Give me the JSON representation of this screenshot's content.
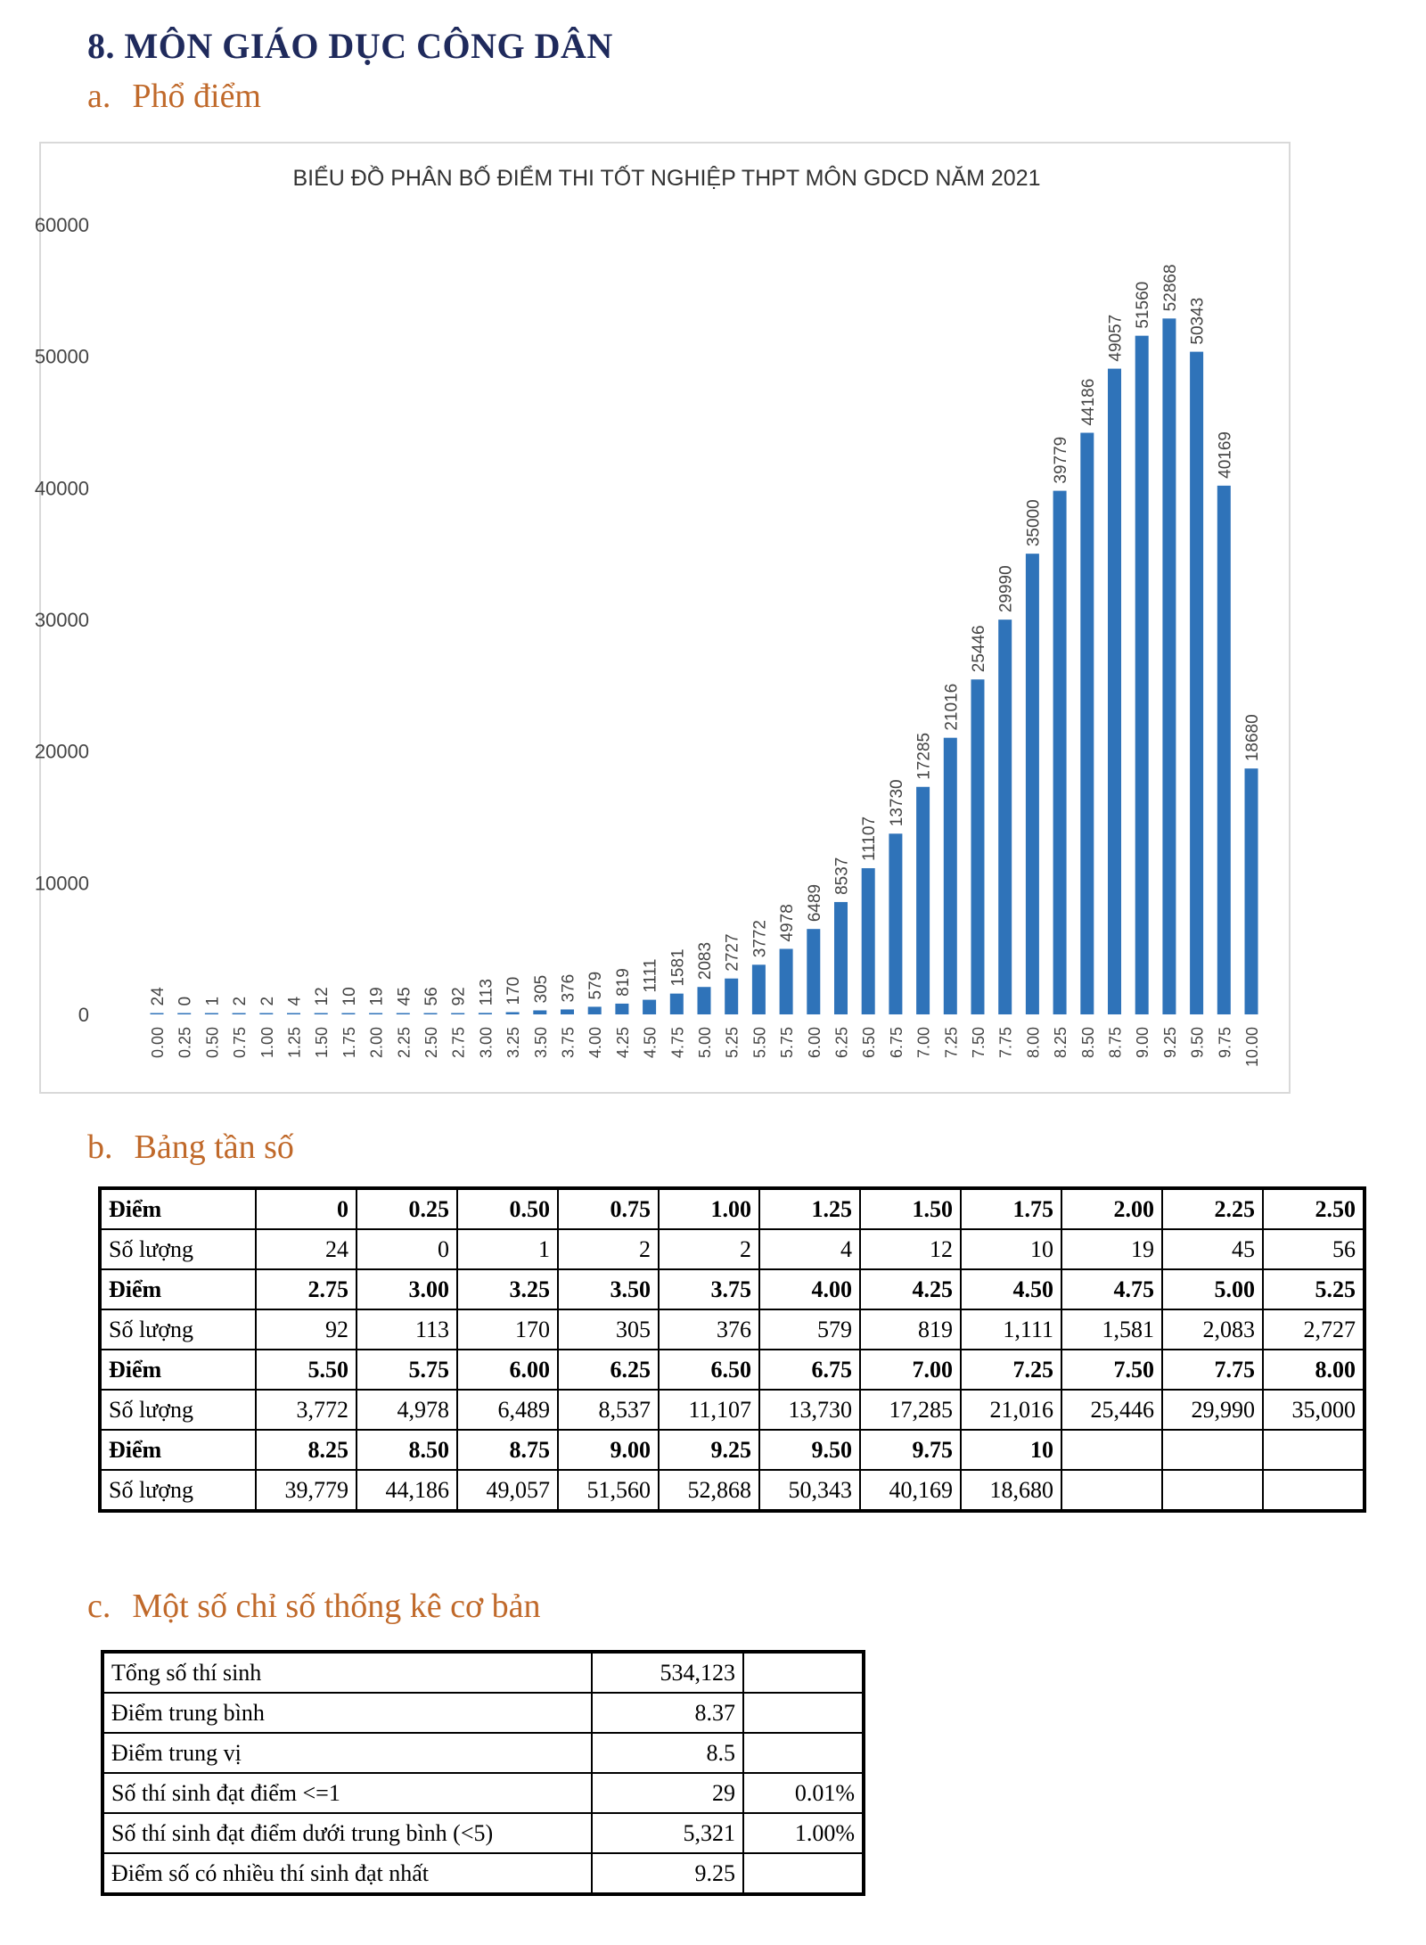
{
  "heading": "8.  MÔN GIÁO DỤC CÔNG DÂN",
  "sections": {
    "a": {
      "label": "a.",
      "title": "Phổ điểm"
    },
    "b": {
      "label": "b.",
      "title": "Bảng tần số"
    },
    "c": {
      "label": "c.",
      "title": "Một số chỉ số thống kê cơ bản"
    }
  },
  "chart_data": {
    "type": "bar",
    "title": "BIỂU ĐỒ PHÂN BỐ ĐIỂM THI TỐT NGHIỆP THPT MÔN GDCD NĂM 2021",
    "categories": [
      "0.00",
      "0.25",
      "0.50",
      "0.75",
      "1.00",
      "1.25",
      "1.50",
      "1.75",
      "2.00",
      "2.25",
      "2.50",
      "2.75",
      "3.00",
      "3.25",
      "3.50",
      "3.75",
      "4.00",
      "4.25",
      "4.50",
      "4.75",
      "5.00",
      "5.25",
      "5.50",
      "5.75",
      "6.00",
      "6.25",
      "6.50",
      "6.75",
      "7.00",
      "7.25",
      "7.50",
      "7.75",
      "8.00",
      "8.25",
      "8.50",
      "8.75",
      "9.00",
      "9.25",
      "9.50",
      "9.75",
      "10.00"
    ],
    "values": [
      24,
      0,
      1,
      2,
      2,
      4,
      12,
      10,
      19,
      45,
      56,
      92,
      113,
      170,
      305,
      376,
      579,
      819,
      1111,
      1581,
      2083,
      2727,
      3772,
      4978,
      6489,
      8537,
      11107,
      13730,
      17285,
      21016,
      25446,
      29990,
      35000,
      39779,
      44186,
      49057,
      51560,
      52868,
      50343,
      40169,
      18680
    ],
    "ylim": [
      0,
      60000
    ],
    "yticks": [
      "0",
      "10000",
      "20000",
      "30000",
      "40000",
      "50000",
      "60000"
    ],
    "grid": false,
    "bar_color": "#2f73b9",
    "data_labels": true
  },
  "freq_table": {
    "rows": [
      {
        "label": "Điểm",
        "cells": [
          "0",
          "0.25",
          "0.50",
          "0.75",
          "1.00",
          "1.25",
          "1.50",
          "1.75",
          "2.00",
          "2.25",
          "2.50"
        ]
      },
      {
        "label": "Số lượng",
        "cells": [
          "24",
          "0",
          "1",
          "2",
          "2",
          "4",
          "12",
          "10",
          "19",
          "45",
          "56"
        ]
      },
      {
        "label": "Điểm",
        "cells": [
          "2.75",
          "3.00",
          "3.25",
          "3.50",
          "3.75",
          "4.00",
          "4.25",
          "4.50",
          "4.75",
          "5.00",
          "5.25"
        ]
      },
      {
        "label": "Số lượng",
        "cells": [
          "92",
          "113",
          "170",
          "305",
          "376",
          "579",
          "819",
          "1,111",
          "1,581",
          "2,083",
          "2,727"
        ]
      },
      {
        "label": "Điểm",
        "cells": [
          "5.50",
          "5.75",
          "6.00",
          "6.25",
          "6.50",
          "6.75",
          "7.00",
          "7.25",
          "7.50",
          "7.75",
          "8.00"
        ]
      },
      {
        "label": "Số lượng",
        "cells": [
          "3,772",
          "4,978",
          "6,489",
          "8,537",
          "11,107",
          "13,730",
          "17,285",
          "21,016",
          "25,446",
          "29,990",
          "35,000"
        ]
      },
      {
        "label": "Điểm",
        "cells": [
          "8.25",
          "8.50",
          "8.75",
          "9.00",
          "9.25",
          "9.50",
          "9.75",
          "10",
          "",
          "",
          ""
        ]
      },
      {
        "label": "Số lượng",
        "cells": [
          "39,779",
          "44,186",
          "49,057",
          "51,560",
          "52,868",
          "50,343",
          "40,169",
          "18,680",
          "",
          "",
          ""
        ]
      }
    ]
  },
  "stats_table": {
    "rows": [
      {
        "label": "Tổng số thí sinh",
        "value": "534,123",
        "pct": ""
      },
      {
        "label": "Điểm trung bình",
        "value": "8.37",
        "pct": ""
      },
      {
        "label": "Điểm trung vị",
        "value": "8.5",
        "pct": ""
      },
      {
        "label": "Số thí sinh đạt điểm <=1",
        "value": "29",
        "pct": "0.01%"
      },
      {
        "label": "Số thí sinh đạt điểm dưới trung bình (<5)",
        "value": "5,321",
        "pct": "1.00%"
      },
      {
        "label": "Điểm số có nhiều thí sinh đạt nhất",
        "value": "9.25",
        "pct": ""
      }
    ]
  }
}
